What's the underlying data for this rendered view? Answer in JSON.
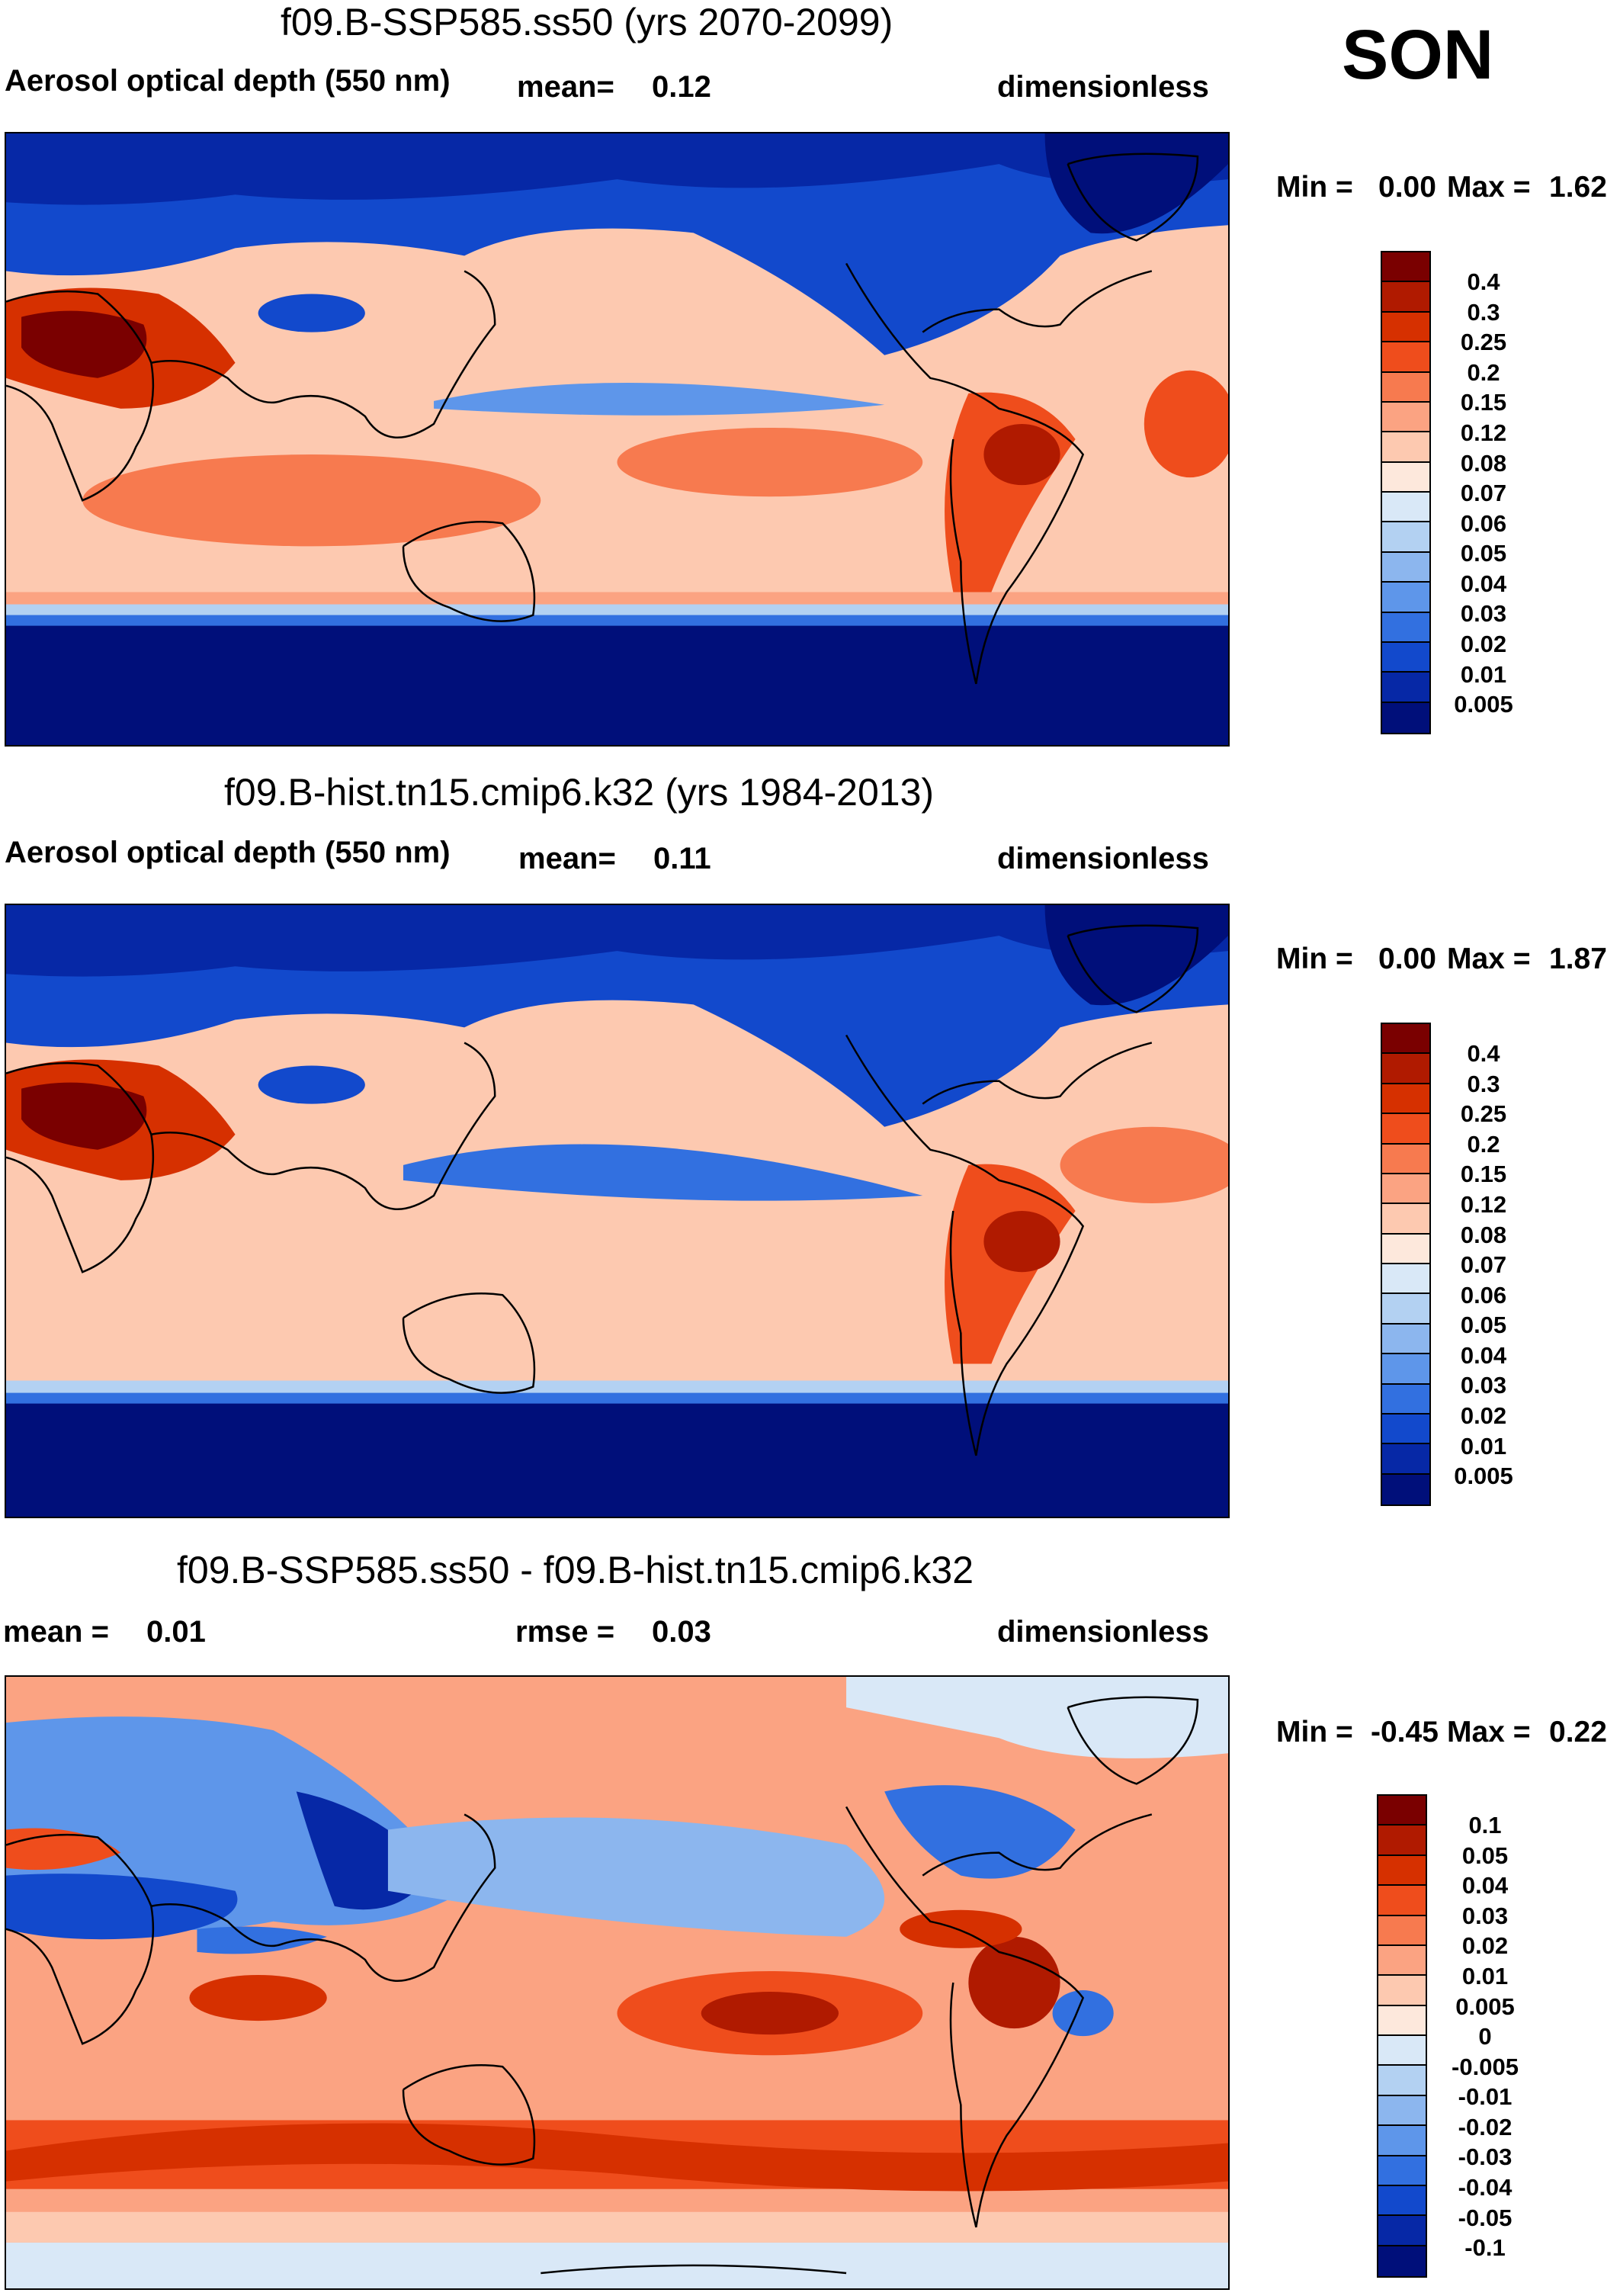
{
  "season": "SON",
  "panels": [
    {
      "title": "f09.B-SSP585.ss50 (yrs 2070-2099)",
      "left_label": "Aerosol optical depth (550 nm)",
      "stat_label": "mean=",
      "stat_value": "0.12",
      "units": "dimensionless",
      "min_label": "Min =",
      "min_value": "0.00",
      "max_label": "Max =",
      "max_value": "1.62",
      "legend_ticks": [
        "0.4",
        "0.3",
        "0.25",
        "0.2",
        "0.15",
        "0.12",
        "0.08",
        "0.07",
        "0.06",
        "0.05",
        "0.04",
        "0.03",
        "0.02",
        "0.01",
        "0.005"
      ]
    },
    {
      "title": "f09.B-hist.tn15.cmip6.k32 (yrs 1984-2013)",
      "left_label": "Aerosol optical depth (550 nm)",
      "stat_label": "mean=",
      "stat_value": "0.11",
      "units": "dimensionless",
      "min_label": "Min =",
      "min_value": "0.00",
      "max_label": "Max =",
      "max_value": "1.87",
      "legend_ticks": [
        "0.4",
        "0.3",
        "0.25",
        "0.2",
        "0.15",
        "0.12",
        "0.08",
        "0.07",
        "0.06",
        "0.05",
        "0.04",
        "0.03",
        "0.02",
        "0.01",
        "0.005"
      ]
    },
    {
      "title": "f09.B-SSP585.ss50 - f09.B-hist.tn15.cmip6.k32",
      "mean_label": "mean =",
      "mean_value": "0.01",
      "rmse_label": "rmse =",
      "rmse_value": "0.03",
      "units": "dimensionless",
      "min_label": "Min =",
      "min_value": "-0.45",
      "max_label": "Max =",
      "max_value": "0.22",
      "legend_ticks": [
        "0.1",
        "0.05",
        "0.04",
        "0.03",
        "0.02",
        "0.01",
        "0.005",
        "0",
        "-0.005",
        "-0.01",
        "-0.02",
        "-0.03",
        "-0.04",
        "-0.05",
        "-0.1"
      ]
    }
  ],
  "colors": {
    "colorbar": [
      "#7a0000",
      "#b01a00",
      "#d63000",
      "#ef4d1c",
      "#f77a4f",
      "#fba382",
      "#fdc9b0",
      "#fde8dc",
      "#d9e8f7",
      "#b3d1f2",
      "#8cb6ee",
      "#5e96ea",
      "#3270e0",
      "#1249cc",
      "#0628a6",
      "#000f7a"
    ],
    "ocean_dark": "#000f7a",
    "coast": "#000000"
  }
}
